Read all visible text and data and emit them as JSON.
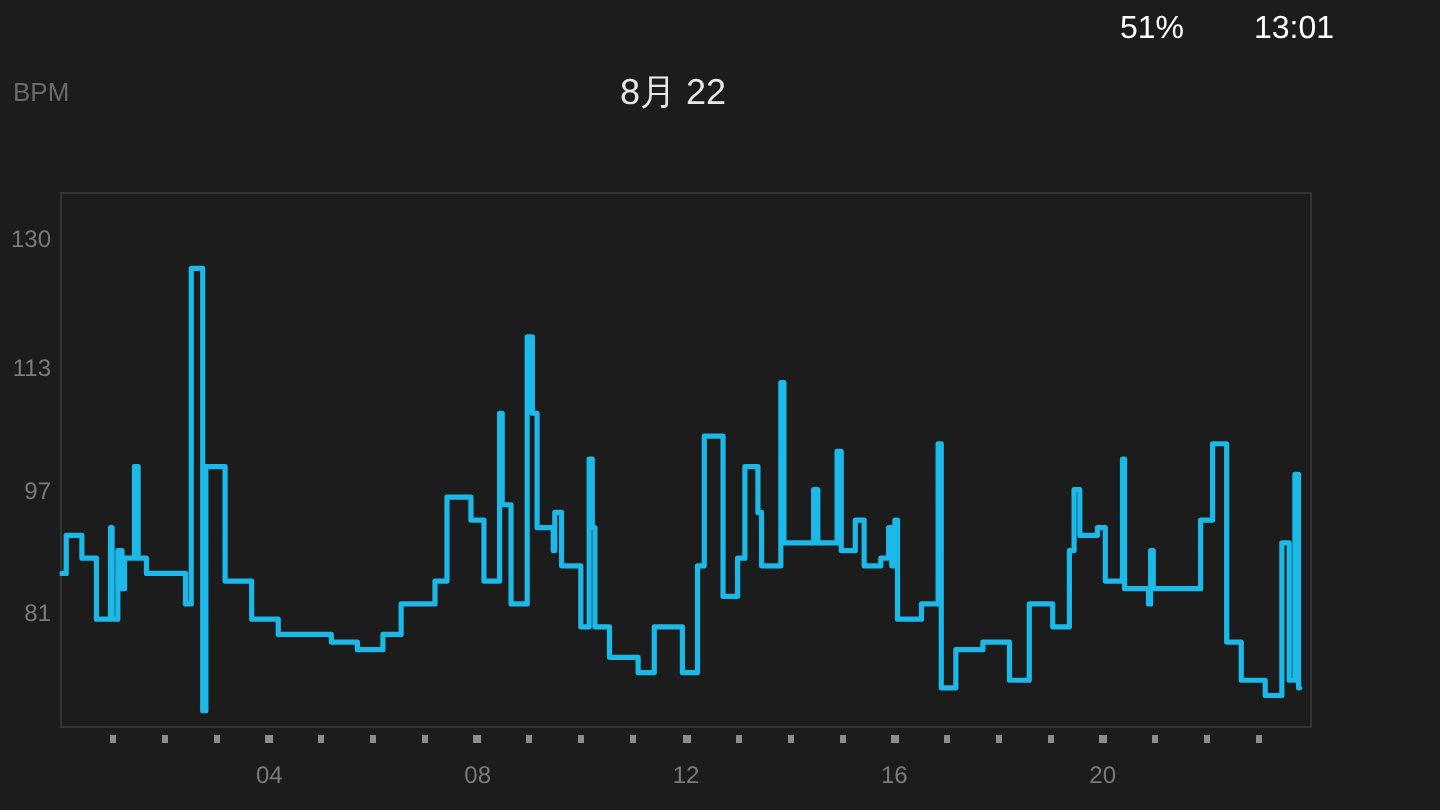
{
  "chart_data": {
    "type": "step",
    "title": "8月 22",
    "ylabel": "BPM",
    "x": [
      0.04,
      0.12,
      0.42,
      0.7,
      0.97,
      1.0,
      1.11,
      1.19,
      1.24,
      1.43,
      1.5,
      1.66,
      2.41,
      2.52,
      2.74,
      2.8,
      3.17,
      3.68,
      4.19,
      5.21,
      5.71,
      6.2,
      6.55,
      7.2,
      7.43,
      7.89,
      8.14,
      8.44,
      8.49,
      8.66,
      8.97,
      9.07,
      9.16,
      9.47,
      9.5,
      9.63,
      10.0,
      10.16,
      10.22,
      10.27,
      10.55,
      11.1,
      11.41,
      11.95,
      12.24,
      12.37,
      12.73,
      13.01,
      13.15,
      13.4,
      13.47,
      13.84,
      13.9,
      14.47,
      14.55,
      14.92,
      15.0,
      15.27,
      15.44,
      15.76,
      15.91,
      15.97,
      16.03,
      16.08,
      16.54,
      16.86,
      16.92,
      17.2,
      17.72,
      18.23,
      18.61,
      19.06,
      19.38,
      19.47,
      19.58,
      19.92,
      20.07,
      20.4,
      20.44,
      20.9,
      20.94,
      20.99,
      21.9,
      22.13,
      22.4,
      22.68,
      23.14,
      23.46,
      23.6,
      23.71,
      23.78,
      23.8
    ],
    "series": [
      {
        "color": "#1cb8e8",
        "values": [
          86,
          91,
          88,
          80,
          92,
          80,
          89,
          84,
          88,
          100,
          88,
          86,
          82,
          126,
          68,
          100,
          85,
          80,
          78,
          77,
          76,
          78,
          82,
          85,
          96,
          93,
          85,
          107,
          95,
          82,
          117,
          107,
          92,
          89,
          94,
          87,
          79,
          101,
          92,
          79,
          75,
          73,
          79,
          73,
          87,
          104,
          83,
          88,
          100,
          94,
          87,
          111,
          90,
          97,
          90,
          102,
          89,
          93,
          87,
          88,
          92,
          87,
          93,
          80,
          82,
          103,
          71,
          76,
          77,
          72,
          82,
          79,
          89,
          97,
          91,
          92,
          85,
          101,
          84,
          82,
          89,
          84,
          93,
          103,
          77,
          72,
          70,
          90,
          72,
          99,
          71,
          71
        ]
      }
    ],
    "xlim": [
      0,
      24
    ],
    "ylim": [
      66,
      136
    ],
    "xticks": [
      {
        "value": 1,
        "label": null
      },
      {
        "value": 2,
        "label": null
      },
      {
        "value": 3,
        "label": null
      },
      {
        "value": 4,
        "label": "04"
      },
      {
        "value": 5,
        "label": null
      },
      {
        "value": 6,
        "label": null
      },
      {
        "value": 7,
        "label": null
      },
      {
        "value": 8,
        "label": "08"
      },
      {
        "value": 9,
        "label": null
      },
      {
        "value": 10,
        "label": null
      },
      {
        "value": 11,
        "label": null
      },
      {
        "value": 12,
        "label": "12"
      },
      {
        "value": 13,
        "label": null
      },
      {
        "value": 14,
        "label": null
      },
      {
        "value": 15,
        "label": null
      },
      {
        "value": 16,
        "label": "16"
      },
      {
        "value": 17,
        "label": null
      },
      {
        "value": 18,
        "label": null
      },
      {
        "value": 19,
        "label": null
      },
      {
        "value": 20,
        "label": "20"
      },
      {
        "value": 21,
        "label": null
      },
      {
        "value": 22,
        "label": null
      },
      {
        "value": 23,
        "label": null
      }
    ],
    "yticks": [
      81,
      97,
      113,
      130
    ],
    "line_style": "solid",
    "annotations": [
      "51%",
      "13:01"
    ]
  }
}
